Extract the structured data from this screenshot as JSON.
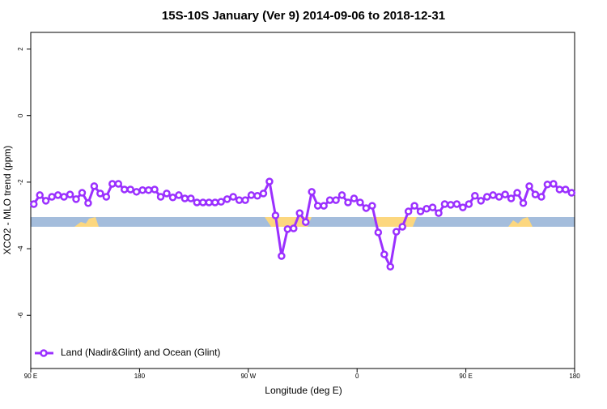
{
  "chart_data": {
    "type": "line",
    "title": "15S-10S January (Ver 9)   2014-09-06 to 2018-12-31",
    "xlabel": "Longitude (deg E)",
    "ylabel": "XCO2 - MLO trend (ppm)",
    "x": [
      92.5,
      97.5,
      102.5,
      107.5,
      112.5,
      117.5,
      122.5,
      127.5,
      132.5,
      137.5,
      142.5,
      147.5,
      152.5,
      157.5,
      162.5,
      167.5,
      172.5,
      177.5,
      182.5,
      187.5,
      192.5,
      197.5,
      202.5,
      207.5,
      212.5,
      217.5,
      222.5,
      227.5,
      232.5,
      237.5,
      242.5,
      247.5,
      252.5,
      257.5,
      262.5,
      267.5,
      272.5,
      277.5,
      282.5,
      287.5,
      292.5,
      297.5,
      302.5,
      307.5,
      312.5,
      317.5,
      322.5,
      327.5,
      332.5,
      337.5,
      342.5,
      347.5,
      352.5,
      357.5,
      362.5,
      367.5,
      372.5,
      377.5,
      382.5,
      387.5,
      392.5,
      397.5,
      402.5,
      407.5,
      412.5,
      417.5,
      422.5,
      427.5,
      432.5,
      437.5,
      442.5,
      447.5,
      452.5,
      457.5,
      462.5,
      467.5,
      472.5,
      477.5,
      482.5,
      487.5,
      492.5,
      497.5,
      502.5,
      507.5,
      512.5,
      517.5,
      522.5,
      527.5,
      532.5,
      537.5
    ],
    "series": [
      {
        "name": "Land (Nadir&Glint) and Ocean (Glint)",
        "color": "#9b30ff",
        "values": [
          -2.66,
          -2.39,
          -2.56,
          -2.44,
          -2.39,
          -2.44,
          -2.37,
          -2.51,
          -2.32,
          -2.63,
          -2.12,
          -2.34,
          -2.44,
          -2.05,
          -2.05,
          -2.22,
          -2.22,
          -2.29,
          -2.24,
          -2.24,
          -2.22,
          -2.44,
          -2.34,
          -2.46,
          -2.39,
          -2.49,
          -2.49,
          -2.61,
          -2.61,
          -2.61,
          -2.61,
          -2.59,
          -2.51,
          -2.44,
          -2.54,
          -2.54,
          -2.39,
          -2.41,
          -2.34,
          -1.98,
          -3.0,
          -4.22,
          -3.41,
          -3.39,
          -2.93,
          -3.2,
          -2.29,
          -2.71,
          -2.71,
          -2.54,
          -2.54,
          -2.39,
          -2.61,
          -2.49,
          -2.61,
          -2.78,
          -2.71,
          -3.51,
          -4.17,
          -4.54,
          -3.49,
          -3.34,
          -2.88,
          -2.71,
          -2.88,
          -2.8,
          -2.76,
          -2.93,
          -2.66,
          -2.68,
          -2.66,
          -2.76,
          -2.66,
          -2.41,
          -2.56,
          -2.44,
          -2.39,
          -2.44,
          -2.37,
          -2.49,
          -2.32,
          -2.63,
          -2.12,
          -2.37,
          -2.44,
          -2.07,
          -2.05,
          -2.22,
          -2.22,
          -2.32
        ]
      }
    ],
    "xlim": [
      90,
      540
    ],
    "xticks": [
      {
        "value": 90,
        "label": "90 E"
      },
      180,
      {
        "value": 270,
        "label": "90 W"
      },
      {
        "value": 360,
        "label": "0"
      },
      {
        "value": 450,
        "label": "90 E"
      },
      {
        "value": 540,
        "label": "180"
      }
    ],
    "ylim": [
      -7.6,
      2.5
    ],
    "yticks": [
      2,
      0,
      -2,
      -4,
      -6
    ],
    "legend": "bottom-left"
  }
}
